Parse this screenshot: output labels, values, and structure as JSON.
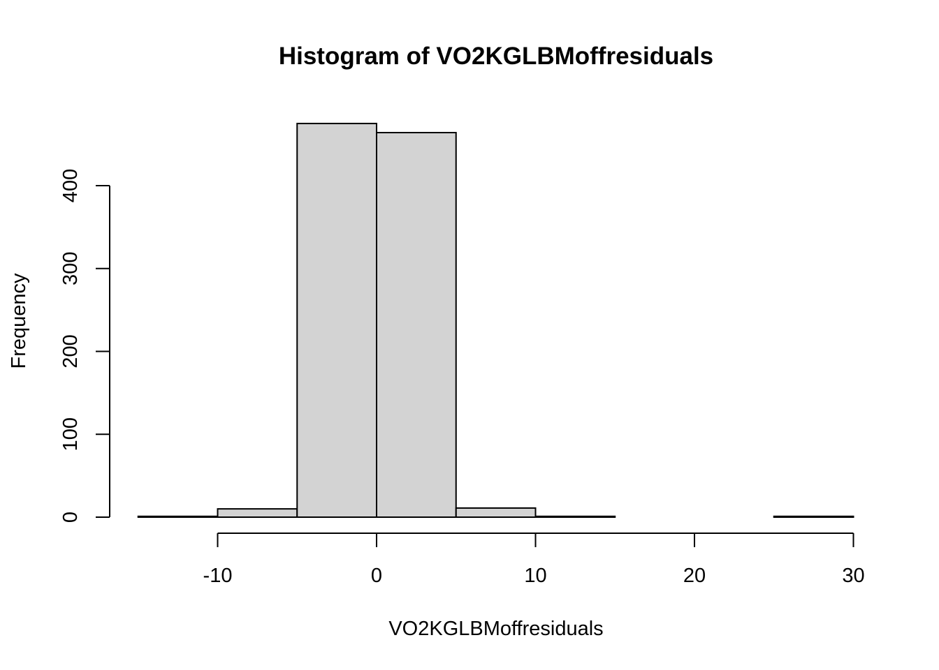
{
  "chart_data": {
    "type": "bar",
    "title": "Histogram of VO2KGLBMoffresiduals",
    "xlabel": "VO2KGLBMoffresiduals",
    "ylabel": "Frequency",
    "bin_edges": [
      -15,
      -10,
      -5,
      0,
      5,
      10,
      15,
      20,
      25,
      30
    ],
    "values": [
      1,
      10,
      475,
      464,
      11,
      1,
      0,
      0,
      1
    ],
    "x_ticks": [
      -10,
      0,
      10,
      20,
      30
    ],
    "x_tick_labels": [
      "-10",
      "0",
      "10",
      "20",
      "30"
    ],
    "y_ticks": [
      0,
      100,
      200,
      300,
      400
    ],
    "y_tick_labels": [
      "0",
      "100",
      "200",
      "300",
      "400"
    ],
    "xlim": [
      -15,
      30
    ],
    "ylim": [
      0,
      475
    ],
    "bar_fill": "#d3d3d3",
    "bar_stroke": "#000000",
    "grid": false,
    "legend": "none"
  }
}
